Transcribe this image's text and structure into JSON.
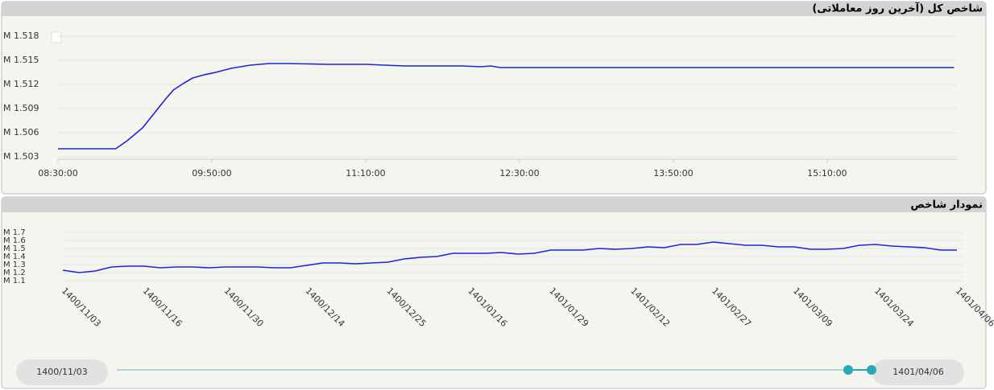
{
  "panels": [
    {
      "title": "شاخص کل (آخرین روز معاملاتی)",
      "chart_data": {
        "type": "line",
        "x": [
          "08:30:00",
          "09:00:00",
          "09:03:00",
          "09:06:00",
          "09:10:00",
          "09:14:00",
          "09:18:00",
          "09:22:00",
          "09:26:00",
          "09:30:00",
          "09:35:00",
          "09:40:00",
          "09:46:00",
          "09:52:00",
          "10:00:00",
          "10:10:00",
          "10:20:00",
          "10:30:00",
          "10:50:00",
          "11:10:00",
          "11:30:00",
          "12:00:00",
          "12:10:00",
          "12:15:00",
          "12:20:00",
          "12:30:00",
          "13:30:00",
          "15:00:00",
          "16:16:00"
        ],
        "series": [
          {
            "color": "#2222dd",
            "values": [
              1.504,
              1.504,
              1.5045,
              1.505,
              1.5058,
              1.5066,
              1.5078,
              1.509,
              1.5102,
              1.5113,
              1.5121,
              1.5128,
              1.5132,
              1.5135,
              1.514,
              1.5144,
              1.5146,
              1.5146,
              1.5145,
              1.5145,
              1.5143,
              1.5143,
              1.5142,
              1.5143,
              1.5141,
              1.5141,
              1.5141,
              1.5141,
              1.5141
            ]
          }
        ],
        "xlim": [
          "08:30:00",
          "16:17:30"
        ],
        "xticks": [
          "08:30:00",
          "09:50:00",
          "11:10:00",
          "12:30:00",
          "13:50:00",
          "15:10:00"
        ],
        "ylim": [
          1.5027,
          1.5195
        ],
        "yticks": [
          {
            "value": 1.503,
            "label": "M 1.503"
          },
          {
            "value": 1.506,
            "label": "M 1.506"
          },
          {
            "value": 1.509,
            "label": "M 1.509"
          },
          {
            "value": 1.512,
            "label": "M 1.512"
          },
          {
            "value": 1.515,
            "label": "M 1.515"
          },
          {
            "value": 1.518,
            "label": "M 1.518"
          }
        ],
        "grid": true
      }
    },
    {
      "title": "نمودار شاخص",
      "chart_data": {
        "type": "line",
        "categories": [
          "1400/11/03",
          null,
          null,
          null,
          null,
          "1400/11/16",
          null,
          null,
          null,
          null,
          "1400/11/30",
          null,
          null,
          null,
          null,
          "1400/12/14",
          null,
          null,
          null,
          null,
          "1400/12/25",
          null,
          null,
          null,
          null,
          "1401/01/16",
          null,
          null,
          null,
          null,
          "1401/01/29",
          null,
          null,
          null,
          null,
          "1401/02/12",
          null,
          null,
          null,
          null,
          "1401/02/27",
          null,
          null,
          null,
          null,
          "1401/03/09",
          null,
          null,
          null,
          null,
          "1401/03/24",
          null,
          null,
          null,
          null,
          "1401/04/06"
        ],
        "series": [
          {
            "color": "#2222dd",
            "values": [
              1.23,
              1.2,
              1.22,
              1.27,
              1.28,
              1.28,
              1.26,
              1.27,
              1.27,
              1.26,
              1.27,
              1.27,
              1.27,
              1.26,
              1.26,
              1.29,
              1.32,
              1.32,
              1.31,
              1.32,
              1.33,
              1.37,
              1.39,
              1.4,
              1.44,
              1.44,
              1.44,
              1.45,
              1.43,
              1.44,
              1.48,
              1.48,
              1.48,
              1.5,
              1.49,
              1.5,
              1.52,
              1.51,
              1.55,
              1.55,
              1.58,
              1.56,
              1.54,
              1.54,
              1.52,
              1.52,
              1.49,
              1.49,
              1.5,
              1.54,
              1.55,
              1.53,
              1.52,
              1.51,
              1.48,
              1.48
            ]
          }
        ],
        "ylim": [
          1.1,
          1.7
        ],
        "yticks": [
          {
            "value": 1.1,
            "label": "M 1.1"
          },
          {
            "value": 1.2,
            "label": "M 1.2"
          },
          {
            "value": 1.3,
            "label": "M 1.3"
          },
          {
            "value": 1.4,
            "label": "M 1.4"
          },
          {
            "value": 1.5,
            "label": "M 1.5"
          },
          {
            "value": 1.6,
            "label": "M 1.6"
          },
          {
            "value": 1.7,
            "label": "M 1.7"
          }
        ],
        "grid": true
      },
      "range_selector": {
        "start": "1400/11/03",
        "end": "1401/04/06"
      }
    }
  ]
}
